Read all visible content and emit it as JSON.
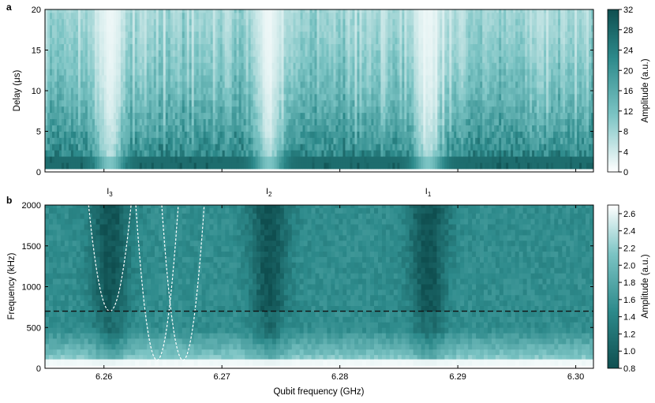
{
  "chart_data": [
    {
      "type": "heatmap",
      "panel_label": "a",
      "xlabel": "",
      "ylabel": "Delay (μs)",
      "xlim": [
        6.255,
        6.3015
      ],
      "ylim": [
        0,
        20
      ],
      "yticks": [
        "0",
        "5",
        "10",
        "15",
        "20"
      ],
      "colorbar": {
        "label": "Amplitude (a.u.)",
        "range": [
          0,
          32
        ],
        "ticks": [
          "0",
          "4",
          "8",
          "12",
          "16",
          "20",
          "24",
          "28",
          "32"
        ],
        "colors": [
          "#ffffff",
          "#0f4f50"
        ]
      },
      "features": {
        "bright_vertical_band_centers_GHz": [
          6.2605,
          6.274,
          6.2875
        ],
        "dark_base_level_us": 0.3
      }
    },
    {
      "type": "heatmap",
      "panel_label": "b",
      "xlabel": "Qubit frequency (GHz)",
      "ylabel": "Frequency (kHz)",
      "xlim": [
        6.255,
        6.3015
      ],
      "ylim": [
        0,
        2000
      ],
      "xticks": [
        "6.26",
        "6.27",
        "6.28",
        "6.29",
        "6.30"
      ],
      "yticks": [
        "0",
        "500",
        "1000",
        "1500",
        "2000"
      ],
      "colorbar": {
        "label": "Amplitude (a.u.)",
        "range": [
          0.8,
          2.7
        ],
        "ticks": [
          "0.8",
          "1.0",
          "1.2",
          "1.4",
          "1.6",
          "1.8",
          "2.0",
          "2.2",
          "2.4",
          "2.6"
        ],
        "colors": [
          "#0f4f50",
          "#ffffff"
        ]
      },
      "horizontal_dashed_line_kHz": 700,
      "level_markers": [
        {
          "base": "I",
          "sub": "3",
          "x": 6.2605
        },
        {
          "base": "I",
          "sub": "2",
          "x": 6.274
        },
        {
          "base": "I",
          "sub": "1",
          "x": 6.2875
        }
      ],
      "dashed_curves": [
        {
          "center_GHz": 6.2605,
          "min_kHz": 700,
          "top_half_width_GHz": 0.0018
        },
        {
          "center_GHz": 6.2645,
          "min_kHz": 100,
          "top_half_width_GHz": 0.0018
        },
        {
          "center_GHz": 6.2667,
          "min_kHz": 100,
          "top_half_width_GHz": 0.0018
        }
      ]
    }
  ]
}
